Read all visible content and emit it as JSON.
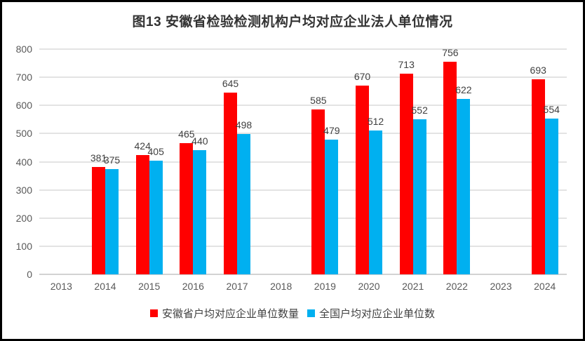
{
  "chart_data": {
    "type": "bar",
    "title": "图13  安徽省检验检测机构户均对应企业法人单位情况",
    "categories": [
      "2013",
      "2014",
      "2015",
      "2016",
      "2017",
      "2018",
      "2019",
      "2020",
      "2021",
      "2022",
      "2023",
      "2024"
    ],
    "series": [
      {
        "name": "安徽省户均对应企业单位数量",
        "color": "#ff0000",
        "values": [
          null,
          381,
          424,
          465,
          645,
          null,
          585,
          670,
          713,
          756,
          null,
          693
        ]
      },
      {
        "name": "全国户均对应企业单位数",
        "color": "#00b0f0",
        "values": [
          null,
          375,
          405,
          440,
          498,
          null,
          479,
          512,
          552,
          622,
          null,
          554
        ]
      }
    ],
    "ylim": [
      0,
      800
    ],
    "ytick_step": 100,
    "grid": "horizontal",
    "legend_position": "bottom",
    "xlabel": "",
    "ylabel": ""
  },
  "colors": {
    "frame_border": "#000000",
    "background": "#ffffff",
    "gridline": "#e3e3e3",
    "baseline": "#d2d2d2",
    "tick_text": "#595959",
    "data_label_text": "#404040",
    "title_text": "#333333"
  }
}
